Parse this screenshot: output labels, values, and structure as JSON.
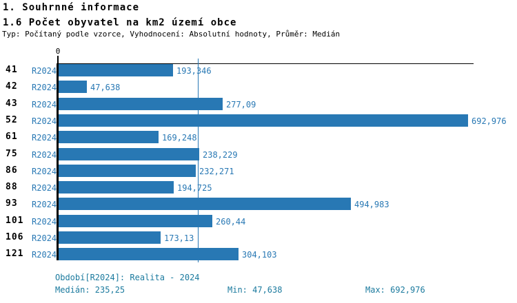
{
  "header": {
    "title": "1. Souhrnné informace",
    "subtitle": "1.6 Počet obyvatel na km2 území obce",
    "type_line": "Typ: Počítaný podle vzorce, Vyhodnocení: Absolutní hodnoty, Průměr: Medián"
  },
  "axis": {
    "zero_label": "0"
  },
  "colors": {
    "bar": "#2878B4",
    "value_label": "#2878B4",
    "footer_text": "#1B7A9E",
    "axis": "#000000"
  },
  "footer": {
    "period_line": "Období[R2024]: Realita - 2024",
    "median_line": "Medián: 235,25",
    "min_line": "Min: 47,638",
    "max_line": "Max: 692,976"
  },
  "chart_data": {
    "type": "bar",
    "orientation": "horizontal",
    "title": "1. Souhrnné informace",
    "subtitle": "1.6 Počet obyvatel na km2 území obce",
    "annotation": "Typ: Počítaný podle vzorce, Vyhodnocení: Absolutní hodnoty, Průměr: Medián",
    "series_name": "R2024",
    "categories": [
      "41",
      "42",
      "43",
      "52",
      "61",
      "75",
      "86",
      "88",
      "93",
      "101",
      "106",
      "121"
    ],
    "values": [
      193.346,
      47.638,
      277.09,
      692.976,
      169.248,
      238.229,
      232.271,
      194.725,
      494.983,
      260.44,
      173.13,
      304.103
    ],
    "value_labels": [
      "193,346",
      "47,638",
      "277,09",
      "692,976",
      "169,248",
      "238,229",
      "232,271",
      "194,725",
      "494,983",
      "260,44",
      "173,13",
      "304,103"
    ],
    "xlim": [
      0,
      700
    ],
    "median": 235.25,
    "min": 47.638,
    "max": 692.976,
    "grid": false,
    "legend_position": "none",
    "rows": [
      {
        "category": "41",
        "period": "R2024",
        "value": 193.346,
        "value_label": "193,346"
      },
      {
        "category": "42",
        "period": "R2024",
        "value": 47.638,
        "value_label": "47,638"
      },
      {
        "category": "43",
        "period": "R2024",
        "value": 277.09,
        "value_label": "277,09"
      },
      {
        "category": "52",
        "period": "R2024",
        "value": 692.976,
        "value_label": "692,976"
      },
      {
        "category": "61",
        "period": "R2024",
        "value": 169.248,
        "value_label": "169,248"
      },
      {
        "category": "75",
        "period": "R2024",
        "value": 238.229,
        "value_label": "238,229"
      },
      {
        "category": "86",
        "period": "R2024",
        "value": 232.271,
        "value_label": "232,271"
      },
      {
        "category": "88",
        "period": "R2024",
        "value": 194.725,
        "value_label": "194,725"
      },
      {
        "category": "93",
        "period": "R2024",
        "value": 494.983,
        "value_label": "494,983"
      },
      {
        "category": "101",
        "period": "R2024",
        "value": 260.44,
        "value_label": "260,44"
      },
      {
        "category": "106",
        "period": "R2024",
        "value": 173.13,
        "value_label": "173,13"
      },
      {
        "category": "121",
        "period": "R2024",
        "value": 304.103,
        "value_label": "304,103"
      }
    ]
  }
}
